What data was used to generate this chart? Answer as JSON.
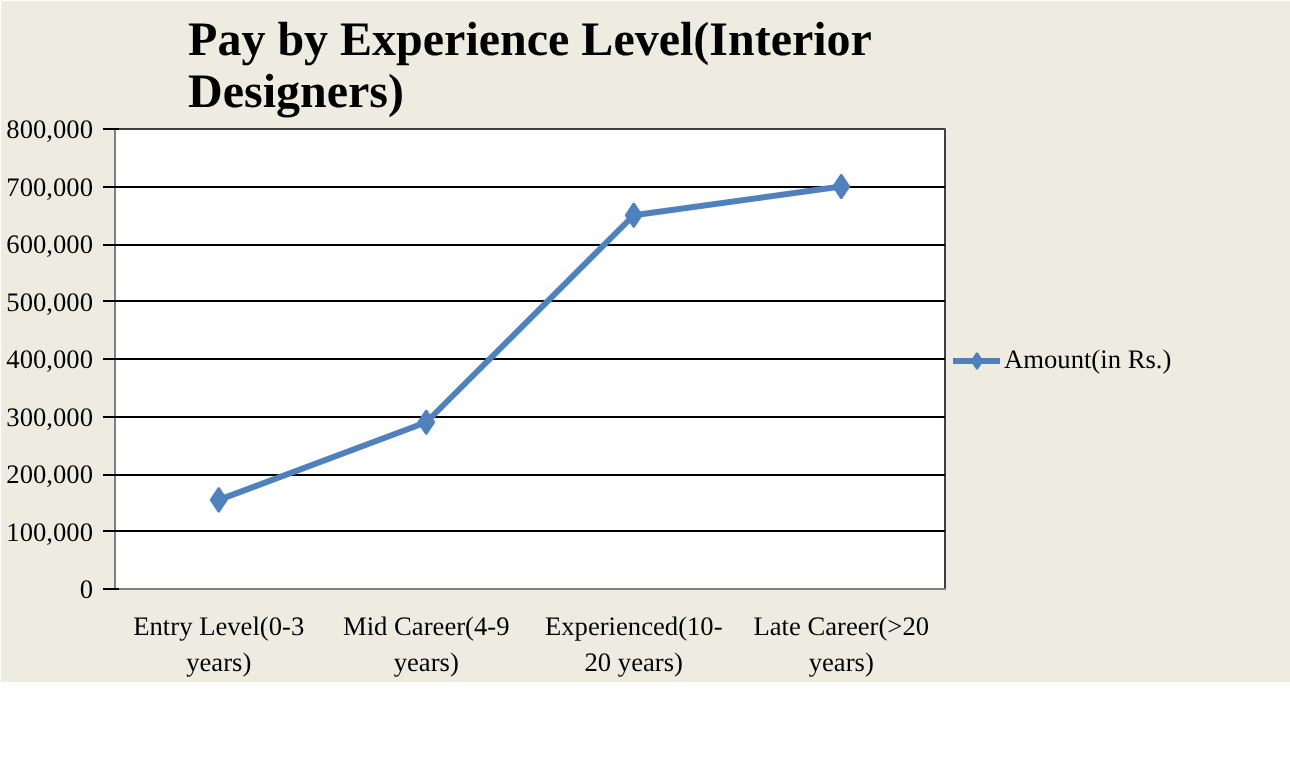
{
  "chart_data": {
    "type": "line",
    "title": "Pay by Experience Level(Interior Designers)",
    "categories": [
      "Entry Level(0-3 years)",
      "Mid Career(4-9 years)",
      "Experienced(10-20 years)",
      "Late Career(>20 years)"
    ],
    "series": [
      {
        "name": "Amount(in Rs.)",
        "color": "#4f81bd",
        "values": [
          155000,
          290000,
          650000,
          700000
        ]
      }
    ],
    "ylim": [
      0,
      800000
    ],
    "yticks": [
      {
        "value": 0,
        "label": "0"
      },
      {
        "value": 100000,
        "label": "100,000"
      },
      {
        "value": 200000,
        "label": "200,000"
      },
      {
        "value": 300000,
        "label": "300,000"
      },
      {
        "value": 400000,
        "label": "400,000"
      },
      {
        "value": 500000,
        "label": "500,000"
      },
      {
        "value": 600000,
        "label": "600,000"
      },
      {
        "value": 700000,
        "label": "700,000"
      },
      {
        "value": 800000,
        "label": "800,000"
      }
    ],
    "grid": "y",
    "legend": "right",
    "marker": "diamond",
    "line_style": "solid"
  }
}
